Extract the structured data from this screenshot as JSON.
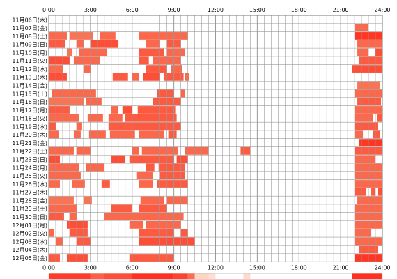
{
  "chart_data": {
    "type": "heatmap",
    "title": "",
    "xlabel": "",
    "ylabel": "",
    "xlim": [
      0,
      24
    ],
    "x_ticks": [
      "0:00",
      "3:00",
      "6:00",
      "9:00",
      "12:00",
      "15:00",
      "18:00",
      "21:00",
      "24:00"
    ],
    "grid": true,
    "legend": "activity-density-strip-bottom",
    "colors": {
      "grid": "#999999",
      "frame": "#777777",
      "high": "#ff2a1a",
      "mid": "#ff6a4d",
      "low": "#f7a57b"
    },
    "rows": [
      {
        "label": "11月06日(木)",
        "segments": []
      },
      {
        "label": "11月07日(金)",
        "segments": [
          [
            22.0,
            23.0,
            0.5
          ]
        ]
      },
      {
        "label": "11月08日(土)",
        "segments": [
          [
            0.0,
            1.3,
            0.5
          ],
          [
            1.5,
            3.2,
            0.4
          ],
          [
            3.7,
            4.8,
            0.5
          ],
          [
            6.5,
            10.0,
            0.5
          ],
          [
            22.0,
            24.0,
            0.9
          ]
        ]
      },
      {
        "label": "11月09日(日)",
        "segments": [
          [
            0.0,
            1.2,
            0.6
          ],
          [
            2.0,
            2.5,
            0.5
          ],
          [
            3.0,
            5.0,
            0.7
          ],
          [
            7.0,
            8.0,
            0.5
          ],
          [
            8.5,
            9.5,
            0.6
          ],
          [
            22.2,
            24.0,
            0.5
          ]
        ]
      },
      {
        "label": "11月10日(月)",
        "segments": [
          [
            1.3,
            1.7,
            0.4
          ],
          [
            2.2,
            4.2,
            0.5
          ],
          [
            6.5,
            8.3,
            0.6
          ],
          [
            8.5,
            9.8,
            0.5
          ],
          [
            22.2,
            23.0,
            0.5
          ],
          [
            23.5,
            24.0,
            0.7
          ]
        ]
      },
      {
        "label": "11月11日(火)",
        "segments": [
          [
            0.0,
            1.5,
            0.7
          ],
          [
            1.8,
            3.7,
            0.5
          ],
          [
            6.5,
            7.2,
            0.6
          ],
          [
            7.5,
            9.5,
            0.5
          ],
          [
            22.3,
            24.0,
            0.6
          ]
        ]
      },
      {
        "label": "11月12日(水)",
        "segments": [
          [
            0.0,
            1.0,
            0.5
          ],
          [
            2.5,
            3.0,
            0.5
          ],
          [
            7.0,
            8.5,
            0.6
          ],
          [
            8.8,
            9.6,
            0.5
          ],
          [
            21.8,
            24.0,
            0.7
          ]
        ]
      },
      {
        "label": "11月13日(木)",
        "segments": [
          [
            0.0,
            1.3,
            0.7
          ],
          [
            4.6,
            5.7,
            0.6
          ],
          [
            6.0,
            6.5,
            0.5
          ],
          [
            6.8,
            8.0,
            0.7
          ],
          [
            8.3,
            9.7,
            0.6
          ],
          [
            9.8,
            10.1,
            0.5
          ]
        ]
      },
      {
        "label": "11月14日(金)",
        "segments": [
          [
            22.2,
            23.8,
            0.4
          ]
        ]
      },
      {
        "label": "11月15日(土)",
        "segments": [
          [
            0.2,
            3.4,
            0.5
          ],
          [
            7.8,
            9.0,
            0.6
          ],
          [
            9.5,
            9.8,
            0.5
          ],
          [
            22.0,
            24.0,
            0.5
          ]
        ]
      },
      {
        "label": "11月16日(日)",
        "segments": [
          [
            0.0,
            2.5,
            0.4
          ],
          [
            2.7,
            3.8,
            0.5
          ],
          [
            7.5,
            9.5,
            0.6
          ],
          [
            22.2,
            23.9,
            0.6
          ]
        ]
      },
      {
        "label": "11月17日(月)",
        "segments": [
          [
            0.0,
            1.5,
            0.6
          ],
          [
            4.5,
            5.0,
            0.5
          ],
          [
            5.3,
            6.0,
            0.7
          ],
          [
            6.4,
            9.1,
            0.6
          ],
          [
            22.0,
            24.0,
            0.5
          ]
        ]
      },
      {
        "label": "11月18日(火)",
        "segments": [
          [
            0.0,
            2.2,
            0.5
          ],
          [
            2.8,
            3.9,
            0.5
          ],
          [
            4.3,
            5.3,
            0.5
          ],
          [
            5.5,
            9.2,
            0.6
          ],
          [
            22.0,
            23.3,
            0.5
          ],
          [
            23.6,
            24.0,
            0.6
          ]
        ]
      },
      {
        "label": "11月19日(水)",
        "segments": [
          [
            0.0,
            0.5,
            0.6
          ],
          [
            2.0,
            2.4,
            0.5
          ],
          [
            4.3,
            9.5,
            0.6
          ],
          [
            22.0,
            23.7,
            0.6
          ]
        ]
      },
      {
        "label": "11月20日(木)",
        "segments": [
          [
            0.0,
            0.7,
            0.5
          ],
          [
            1.8,
            2.3,
            0.5
          ],
          [
            2.9,
            4.1,
            0.5
          ],
          [
            4.4,
            6.2,
            0.5
          ],
          [
            6.5,
            8.3,
            0.5
          ],
          [
            8.6,
            9.2,
            0.6
          ],
          [
            22.0,
            22.6,
            0.5
          ],
          [
            23.3,
            23.8,
            0.6
          ]
        ]
      },
      {
        "label": "11月21日(金)",
        "segments": [
          [
            22.3,
            24.0,
            0.9
          ]
        ]
      },
      {
        "label": "11月22日(土)",
        "segments": [
          [
            0.0,
            1.8,
            0.5
          ],
          [
            2.0,
            3.0,
            0.5
          ],
          [
            6.0,
            6.5,
            0.5
          ],
          [
            6.7,
            9.3,
            0.5
          ],
          [
            9.8,
            11.5,
            0.5
          ],
          [
            13.8,
            14.5,
            0.6
          ],
          [
            22.0,
            24.0,
            0.6
          ]
        ]
      },
      {
        "label": "11月23日(日)",
        "segments": [
          [
            0.0,
            0.8,
            0.7
          ],
          [
            4.5,
            5.5,
            0.7
          ],
          [
            5.8,
            9.0,
            0.6
          ],
          [
            9.2,
            10.0,
            0.7
          ],
          [
            22.0,
            23.5,
            0.5
          ]
        ]
      },
      {
        "label": "11月24日(月)",
        "segments": [
          [
            0.0,
            2.2,
            0.5
          ],
          [
            2.7,
            4.0,
            0.5
          ],
          [
            7.0,
            7.6,
            0.6
          ],
          [
            7.9,
            9.8,
            0.6
          ],
          [
            22.0,
            24.0,
            0.5
          ]
        ]
      },
      {
        "label": "11月25日(火)",
        "segments": [
          [
            0.0,
            2.3,
            0.5
          ],
          [
            6.3,
            7.5,
            0.5
          ],
          [
            8.0,
            9.8,
            0.6
          ],
          [
            22.0,
            24.0,
            0.5
          ]
        ]
      },
      {
        "label": "11月26日(水)",
        "segments": [
          [
            0.0,
            0.8,
            0.5
          ],
          [
            1.7,
            2.6,
            0.5
          ],
          [
            3.8,
            4.4,
            0.6
          ],
          [
            6.5,
            7.5,
            0.5
          ],
          [
            7.8,
            10.0,
            0.6
          ],
          [
            22.0,
            24.0,
            0.5
          ]
        ]
      },
      {
        "label": "11月27日(木)",
        "segments": [
          [
            22.0,
            22.8,
            0.6
          ],
          [
            23.2,
            23.5,
            0.6
          ],
          [
            23.7,
            24.0,
            0.7
          ]
        ]
      },
      {
        "label": "11月28日(金)",
        "segments": [
          [
            0.0,
            1.8,
            0.4
          ],
          [
            2.5,
            3.1,
            0.4
          ],
          [
            6.6,
            8.3,
            0.5
          ],
          [
            8.5,
            10.0,
            0.5
          ],
          [
            22.2,
            24.0,
            0.5
          ]
        ]
      },
      {
        "label": "11月29日(土)",
        "segments": [
          [
            0.0,
            2.0,
            0.5
          ],
          [
            4.5,
            6.0,
            0.6
          ],
          [
            6.5,
            8.5,
            0.6
          ],
          [
            22.0,
            24.0,
            0.5
          ]
        ]
      },
      {
        "label": "11月30日(日)",
        "segments": [
          [
            0.0,
            1.1,
            0.6
          ],
          [
            1.5,
            2.0,
            0.5
          ],
          [
            4.0,
            9.7,
            0.5
          ],
          [
            22.0,
            24.0,
            0.5
          ]
        ]
      },
      {
        "label": "12月01日(月)",
        "segments": [
          [
            1.3,
            2.8,
            0.7
          ],
          [
            5.8,
            6.8,
            0.5
          ],
          [
            7.0,
            9.5,
            0.5
          ],
          [
            22.0,
            24.0,
            0.5
          ]
        ]
      },
      {
        "label": "12月02日(火)",
        "segments": [
          [
            0.0,
            0.4,
            0.5
          ],
          [
            1.5,
            2.8,
            0.6
          ],
          [
            6.5,
            9.0,
            0.6
          ],
          [
            9.5,
            10.0,
            0.6
          ],
          [
            22.0,
            23.2,
            0.5
          ]
        ]
      },
      {
        "label": "12月03日(水)",
        "segments": [
          [
            0.5,
            1.0,
            0.5
          ],
          [
            2.0,
            3.0,
            0.6
          ],
          [
            6.5,
            10.5,
            0.7
          ],
          [
            22.0,
            24.0,
            0.5
          ]
        ]
      },
      {
        "label": "12月04日(木)",
        "segments": [
          [
            22.3,
            23.7,
            0.6
          ]
        ]
      },
      {
        "label": "12月05日(金)",
        "segments": [
          [
            0.0,
            0.8,
            0.6
          ],
          [
            1.3,
            2.8,
            0.7
          ],
          [
            5.8,
            9.0,
            0.6
          ],
          [
            22.0,
            24.0,
            0.9
          ]
        ]
      }
    ],
    "density_strip": [
      [
        0.0,
        3.0,
        0.85
      ],
      [
        3.0,
        4.0,
        0.55
      ],
      [
        4.0,
        6.0,
        0.7
      ],
      [
        6.0,
        9.0,
        0.95
      ],
      [
        9.0,
        10.0,
        0.8
      ],
      [
        10.0,
        10.5,
        0.45
      ],
      [
        10.5,
        11.5,
        0.2
      ],
      [
        11.5,
        12.0,
        0.1
      ],
      [
        14.0,
        14.5,
        0.15
      ],
      [
        21.8,
        24.0,
        0.95
      ]
    ]
  }
}
